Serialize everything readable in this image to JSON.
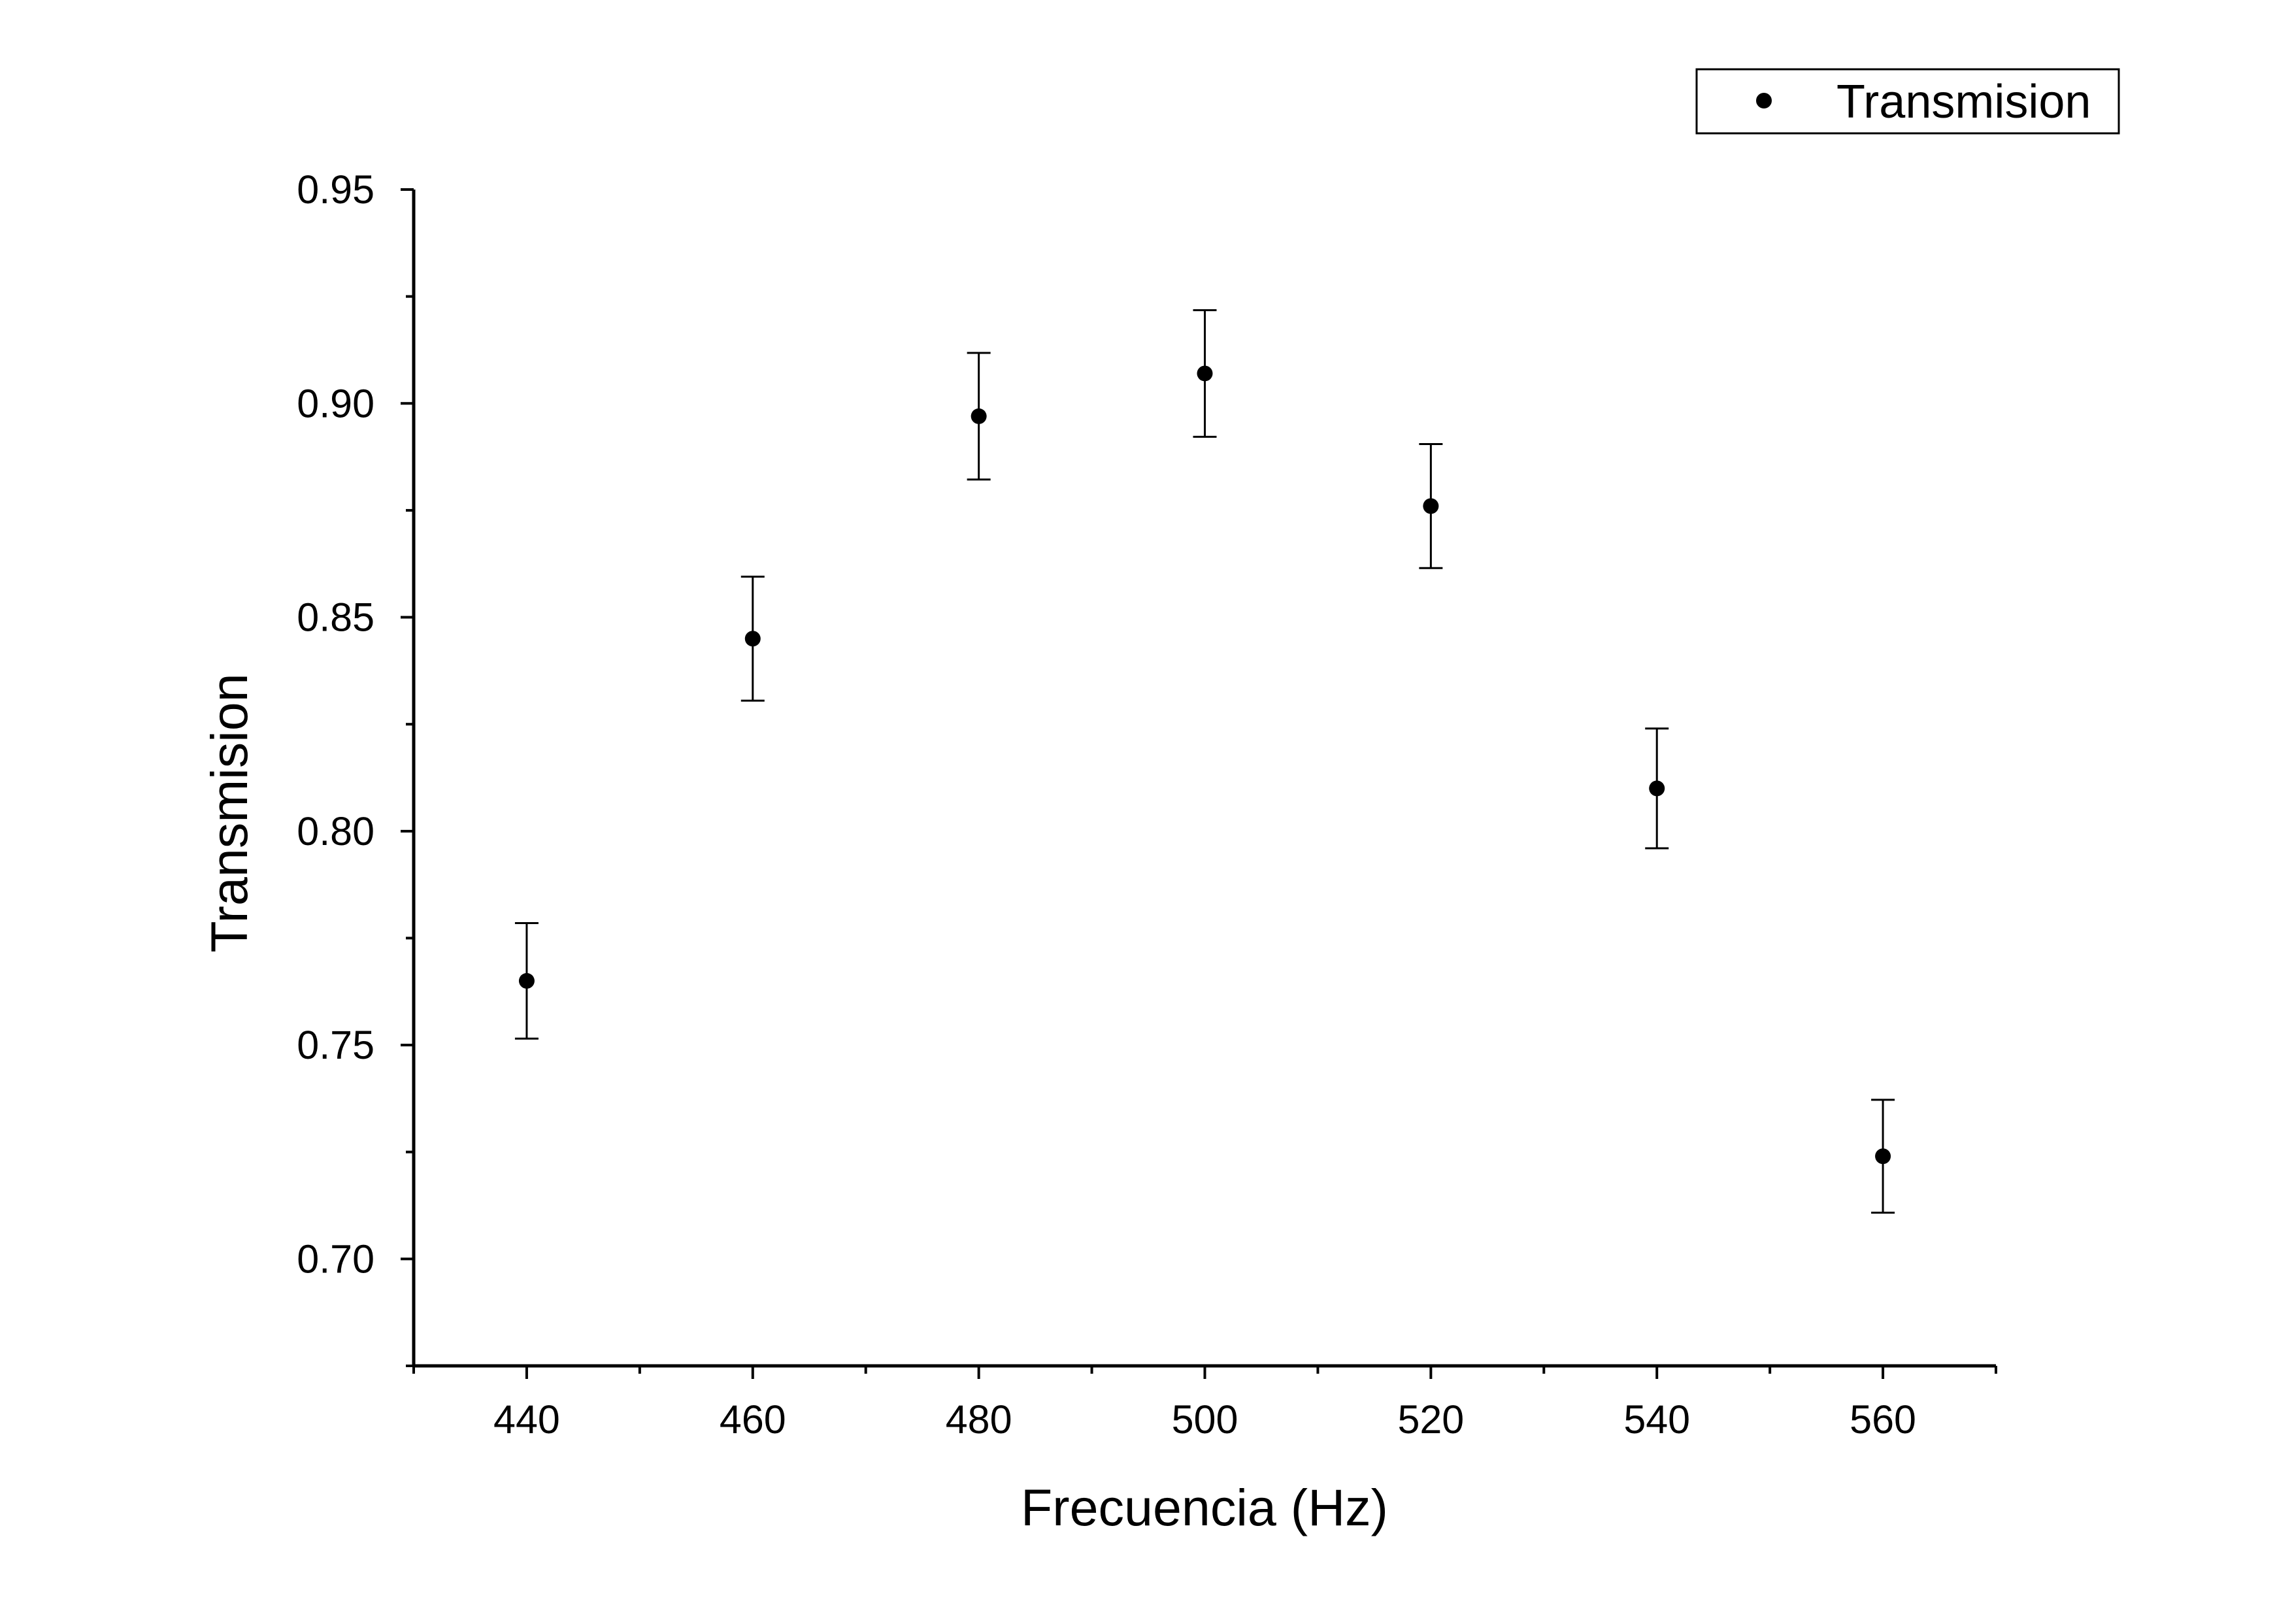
{
  "chart_data": {
    "type": "scatter",
    "xlabel": "Frecuencia (Hz)",
    "ylabel": "Transmision",
    "xlim": [
      430,
      570
    ],
    "ylim": [
      0.675,
      0.95
    ],
    "x_ticks": [
      440,
      460,
      480,
      500,
      520,
      540,
      560
    ],
    "x_tick_labels": [
      "440",
      "460",
      "480",
      "500",
      "520",
      "540",
      "560"
    ],
    "x_minor_ticks": [
      430,
      450,
      470,
      490,
      510,
      530,
      550,
      570
    ],
    "y_ticks": [
      0.7,
      0.75,
      0.8,
      0.85,
      0.9,
      0.95
    ],
    "y_tick_labels": [
      "0.70",
      "0.75",
      "0.80",
      "0.85",
      "0.90",
      "0.95"
    ],
    "y_minor_ticks": [
      0.675,
      0.725,
      0.775,
      0.825,
      0.875,
      0.925
    ],
    "grid": false,
    "legend_position": "top-right",
    "series": [
      {
        "name": "Transmision",
        "marker": "circle",
        "color": "#000000",
        "x": [
          440,
          460,
          480,
          500,
          520,
          540,
          560
        ],
        "y": [
          0.765,
          0.845,
          0.897,
          0.907,
          0.876,
          0.81,
          0.724
        ],
        "error": [
          0.0135,
          0.0145,
          0.0148,
          0.0148,
          0.0145,
          0.014,
          0.0132
        ]
      }
    ]
  }
}
